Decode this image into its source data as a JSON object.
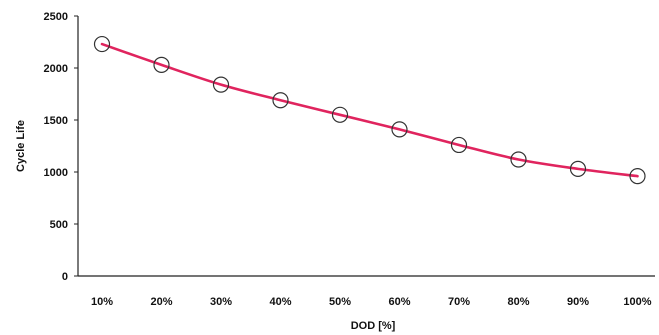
{
  "chart_data": {
    "type": "line",
    "xlabel": "DOD [%]",
    "ylabel": "Cycle Life",
    "categories": [
      "10%",
      "20%",
      "30%",
      "40%",
      "50%",
      "60%",
      "70%",
      "80%",
      "90%",
      "100%"
    ],
    "series": [
      {
        "values": [
          2230,
          2030,
          1840,
          1690,
          1550,
          1410,
          1260,
          1120,
          1030,
          960
        ],
        "color": "#e0245e",
        "marker": "open-circle"
      }
    ],
    "ylim": [
      0,
      2500
    ],
    "yticks": [
      0,
      500,
      1000,
      1500,
      2000,
      2500
    ],
    "grid": false,
    "legend": "none"
  }
}
